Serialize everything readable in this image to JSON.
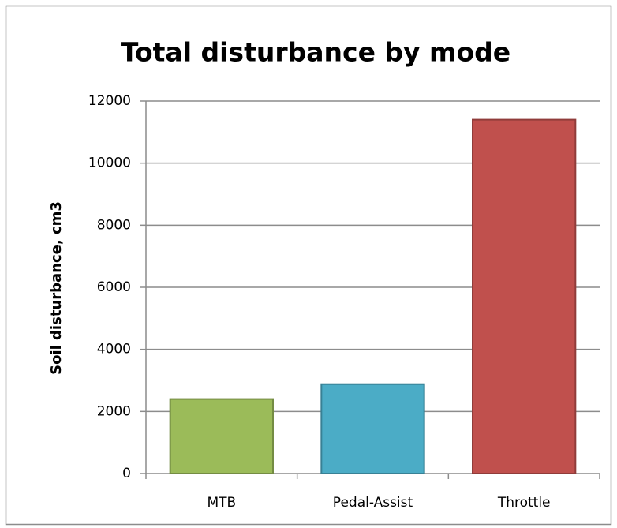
{
  "chart_data": {
    "type": "bar",
    "title": "Total disturbance by mode",
    "y_label": "Soil disturbance, cm3",
    "categories": [
      "MTB",
      "Pedal-Assist",
      "Throttle"
    ],
    "values": [
      2400,
      2880,
      11400
    ],
    "colors": [
      "#9bbb59",
      "#4bacc6",
      "#c0504d"
    ],
    "ylim": [
      0,
      12000
    ],
    "yticks": [
      0,
      2000,
      4000,
      6000,
      8000,
      10000,
      12000
    ],
    "grid": true
  }
}
